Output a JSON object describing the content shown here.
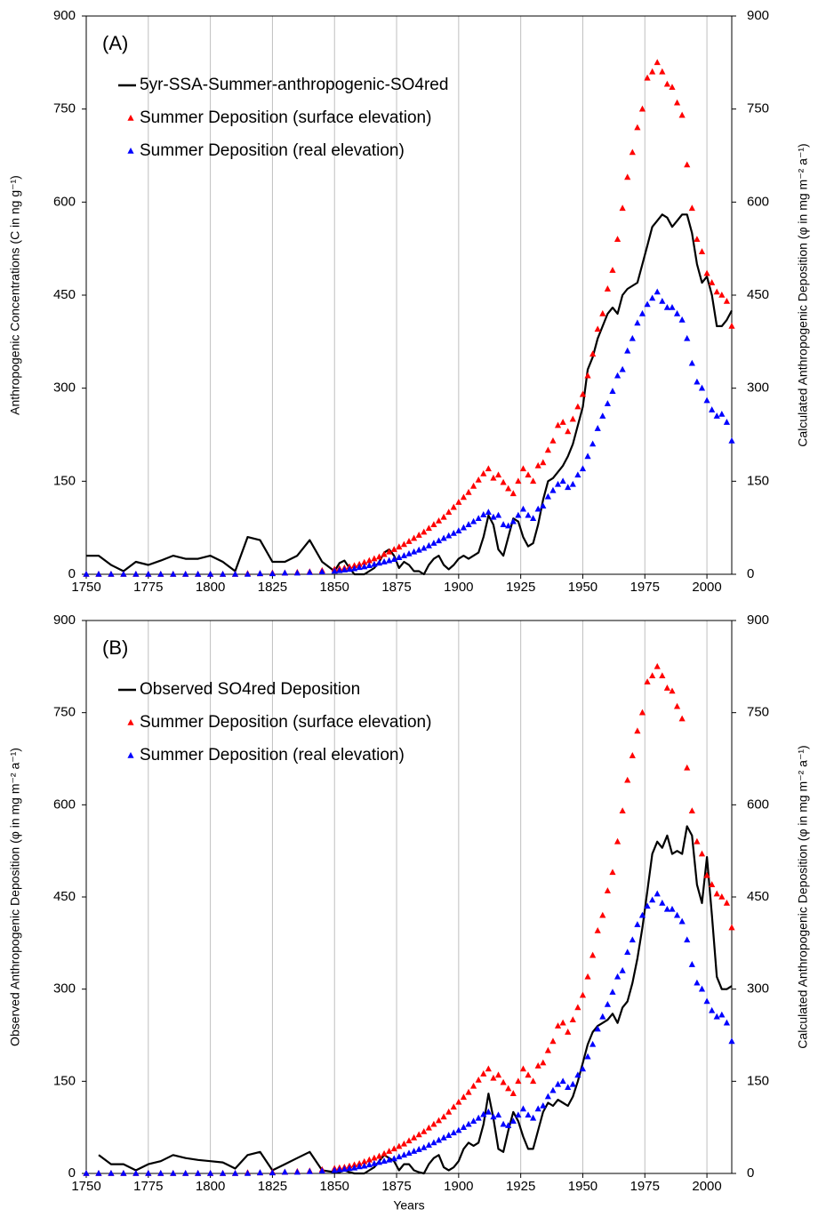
{
  "chart_data": [
    {
      "type": "line",
      "label": "(A)",
      "ylabel": "Anthropogenic Concentrations (C in ng g⁻¹)",
      "y2label": "Calculated Anthropogenic Deposition (φ in mg m⁻² a⁻¹)",
      "xlim": [
        1750,
        2010
      ],
      "xticks": [
        1750,
        1775,
        1800,
        1825,
        1850,
        1875,
        1900,
        1925,
        1950,
        1975,
        2000
      ],
      "ylim": [
        0,
        900
      ],
      "yticks": [
        0,
        150,
        300,
        450,
        600,
        750,
        900
      ],
      "y2lim": [
        0,
        900
      ],
      "y2ticks": [
        0,
        150,
        300,
        450,
        600,
        750,
        900
      ],
      "grid": true,
      "legend": "upper left",
      "x": [
        1750,
        1755,
        1760,
        1765,
        1770,
        1775,
        1780,
        1785,
        1790,
        1795,
        1800,
        1805,
        1810,
        1815,
        1820,
        1825,
        1830,
        1835,
        1840,
        1845,
        1850,
        1852,
        1854,
        1856,
        1858,
        1860,
        1862,
        1864,
        1866,
        1868,
        1870,
        1872,
        1874,
        1876,
        1878,
        1880,
        1882,
        1884,
        1886,
        1888,
        1890,
        1892,
        1894,
        1896,
        1898,
        1900,
        1902,
        1904,
        1906,
        1908,
        1910,
        1912,
        1914,
        1916,
        1918,
        1920,
        1922,
        1924,
        1926,
        1928,
        1930,
        1932,
        1934,
        1936,
        1938,
        1940,
        1942,
        1944,
        1946,
        1948,
        1950,
        1952,
        1954,
        1956,
        1958,
        1960,
        1962,
        1964,
        1966,
        1968,
        1970,
        1972,
        1974,
        1976,
        1978,
        1980,
        1982,
        1984,
        1986,
        1988,
        1990,
        1992,
        1994,
        1996,
        1998,
        2000,
        2002,
        2004,
        2006,
        2008,
        2010
      ],
      "series": [
        {
          "name": "5yr-SSA-Summer-anthropogenic-SO4red",
          "style": "line",
          "color": "#000000",
          "values": [
            30,
            30,
            15,
            5,
            20,
            15,
            22,
            30,
            25,
            25,
            30,
            20,
            5,
            60,
            55,
            20,
            20,
            30,
            55,
            20,
            5,
            18,
            22,
            10,
            0,
            0,
            0,
            5,
            10,
            20,
            35,
            40,
            30,
            10,
            20,
            15,
            5,
            5,
            0,
            15,
            25,
            30,
            15,
            8,
            15,
            25,
            30,
            25,
            30,
            35,
            60,
            95,
            80,
            40,
            30,
            60,
            90,
            85,
            60,
            45,
            50,
            80,
            120,
            150,
            155,
            165,
            175,
            190,
            210,
            240,
            270,
            330,
            350,
            380,
            400,
            420,
            430,
            420,
            450,
            460,
            465,
            470,
            500,
            530,
            560,
            570,
            580,
            575,
            560,
            570,
            580,
            580,
            550,
            500,
            470,
            480,
            450,
            400,
            400,
            410,
            425
          ]
        },
        {
          "name": "Summer Deposition (surface elevation)",
          "style": "triangle",
          "color": "#ff0000",
          "axis": "y2",
          "values": [
            0,
            0,
            0,
            0,
            0,
            0,
            0,
            0,
            0,
            0,
            0,
            0,
            0,
            1,
            1,
            2,
            2,
            3,
            4,
            6,
            8,
            9,
            10,
            12,
            14,
            16,
            19,
            22,
            25,
            28,
            32,
            36,
            40,
            44,
            48,
            53,
            58,
            63,
            68,
            74,
            80,
            86,
            92,
            100,
            108,
            116,
            124,
            132,
            142,
            152,
            162,
            170,
            155,
            160,
            148,
            138,
            130,
            150,
            170,
            160,
            150,
            175,
            180,
            200,
            215,
            240,
            245,
            230,
            250,
            270,
            290,
            320,
            355,
            395,
            420,
            460,
            490,
            540,
            590,
            640,
            680,
            720,
            750,
            800,
            810,
            825,
            810,
            790,
            785,
            760,
            740,
            660,
            590,
            540,
            520,
            485,
            470,
            455,
            450,
            440,
            400
          ]
        },
        {
          "name": "Summer Deposition (real elevation)",
          "style": "triangle",
          "color": "#0000ff",
          "axis": "y2",
          "values": [
            0,
            0,
            0,
            0,
            0,
            0,
            0,
            0,
            0,
            0,
            0,
            0,
            0,
            0,
            1,
            1,
            2,
            2,
            3,
            4,
            5,
            6,
            7,
            8,
            9,
            11,
            12,
            14,
            16,
            18,
            20,
            22,
            24,
            27,
            30,
            33,
            36,
            39,
            42,
            46,
            50,
            54,
            58,
            62,
            66,
            70,
            75,
            80,
            85,
            90,
            96,
            100,
            92,
            95,
            80,
            78,
            85,
            95,
            105,
            95,
            90,
            105,
            110,
            125,
            135,
            145,
            150,
            140,
            145,
            160,
            170,
            190,
            210,
            235,
            255,
            275,
            295,
            320,
            330,
            360,
            380,
            405,
            420,
            435,
            445,
            455,
            440,
            430,
            430,
            420,
            410,
            380,
            340,
            310,
            300,
            280,
            265,
            255,
            258,
            245,
            215
          ]
        }
      ]
    },
    {
      "type": "line",
      "label": "(B)",
      "ylabel": "Observed Anthropogenic Deposition (φ in mg m⁻² a⁻¹)",
      "y2label": "Calculated Anthropogenic Deposition (φ in mg m⁻² a⁻¹)",
      "xlabel": "Years",
      "xlim": [
        1750,
        2010
      ],
      "xticks": [
        1750,
        1775,
        1800,
        1825,
        1850,
        1875,
        1900,
        1925,
        1950,
        1975,
        2000
      ],
      "ylim": [
        0,
        900
      ],
      "yticks": [
        0,
        150,
        300,
        450,
        600,
        750,
        900
      ],
      "y2lim": [
        0,
        900
      ],
      "y2ticks": [
        0,
        150,
        300,
        450,
        600,
        750,
        900
      ],
      "grid": true,
      "legend": "upper left",
      "x": [
        1750,
        1755,
        1760,
        1765,
        1770,
        1775,
        1780,
        1785,
        1790,
        1795,
        1800,
        1805,
        1810,
        1815,
        1820,
        1825,
        1830,
        1835,
        1840,
        1845,
        1850,
        1852,
        1854,
        1856,
        1858,
        1860,
        1862,
        1864,
        1866,
        1868,
        1870,
        1872,
        1874,
        1876,
        1878,
        1880,
        1882,
        1884,
        1886,
        1888,
        1890,
        1892,
        1894,
        1896,
        1898,
        1900,
        1902,
        1904,
        1906,
        1908,
        1910,
        1912,
        1914,
        1916,
        1918,
        1920,
        1922,
        1924,
        1926,
        1928,
        1930,
        1932,
        1934,
        1936,
        1938,
        1940,
        1942,
        1944,
        1946,
        1948,
        1950,
        1952,
        1954,
        1956,
        1958,
        1960,
        1962,
        1964,
        1966,
        1968,
        1970,
        1972,
        1974,
        1976,
        1978,
        1980,
        1982,
        1984,
        1986,
        1988,
        1990,
        1992,
        1994,
        1996,
        1998,
        2000,
        2002,
        2004,
        2006,
        2008,
        2010
      ],
      "series": [
        {
          "name": "Observed SO4red Deposition",
          "style": "line",
          "color": "#000000",
          "values": [
            null,
            30,
            15,
            15,
            5,
            15,
            20,
            30,
            25,
            22,
            20,
            18,
            8,
            30,
            35,
            5,
            15,
            25,
            35,
            5,
            2,
            2,
            5,
            2,
            0,
            0,
            0,
            5,
            10,
            20,
            30,
            25,
            20,
            5,
            15,
            15,
            5,
            2,
            0,
            15,
            25,
            30,
            10,
            5,
            10,
            20,
            40,
            50,
            45,
            50,
            80,
            130,
            90,
            40,
            35,
            70,
            100,
            85,
            60,
            40,
            40,
            70,
            100,
            115,
            110,
            120,
            115,
            110,
            125,
            150,
            180,
            210,
            230,
            240,
            245,
            250,
            260,
            245,
            270,
            280,
            310,
            350,
            400,
            460,
            520,
            540,
            530,
            550,
            520,
            525,
            520,
            565,
            550,
            470,
            440,
            515,
            420,
            320,
            300,
            300,
            305
          ]
        },
        {
          "name": "Summer Deposition (surface elevation)",
          "style": "triangle",
          "color": "#ff0000",
          "axis": "y2",
          "values": [
            0,
            0,
            0,
            0,
            0,
            0,
            0,
            0,
            0,
            0,
            0,
            0,
            0,
            1,
            1,
            2,
            2,
            3,
            4,
            6,
            8,
            9,
            10,
            12,
            14,
            16,
            19,
            22,
            25,
            28,
            32,
            36,
            40,
            44,
            48,
            53,
            58,
            63,
            68,
            74,
            80,
            86,
            92,
            100,
            108,
            116,
            124,
            132,
            142,
            152,
            162,
            170,
            155,
            160,
            148,
            138,
            130,
            150,
            170,
            160,
            150,
            175,
            180,
            200,
            215,
            240,
            245,
            230,
            250,
            270,
            290,
            320,
            355,
            395,
            420,
            460,
            490,
            540,
            590,
            640,
            680,
            720,
            750,
            800,
            810,
            825,
            810,
            790,
            785,
            760,
            740,
            660,
            590,
            540,
            520,
            485,
            470,
            455,
            450,
            440,
            400
          ]
        },
        {
          "name": "Summer Deposition (real elevation)",
          "style": "triangle",
          "color": "#0000ff",
          "axis": "y2",
          "values": [
            0,
            0,
            0,
            0,
            0,
            0,
            0,
            0,
            0,
            0,
            0,
            0,
            0,
            0,
            1,
            1,
            2,
            2,
            3,
            4,
            5,
            6,
            7,
            8,
            9,
            11,
            12,
            14,
            16,
            18,
            20,
            22,
            24,
            27,
            30,
            33,
            36,
            39,
            42,
            46,
            50,
            54,
            58,
            62,
            66,
            70,
            75,
            80,
            85,
            90,
            96,
            100,
            92,
            95,
            80,
            78,
            85,
            95,
            105,
            95,
            90,
            105,
            110,
            125,
            135,
            145,
            150,
            140,
            145,
            160,
            170,
            190,
            210,
            235,
            255,
            275,
            295,
            320,
            330,
            360,
            380,
            405,
            420,
            435,
            445,
            455,
            440,
            430,
            430,
            420,
            410,
            380,
            340,
            310,
            300,
            280,
            265,
            255,
            258,
            245,
            215
          ]
        }
      ]
    }
  ]
}
